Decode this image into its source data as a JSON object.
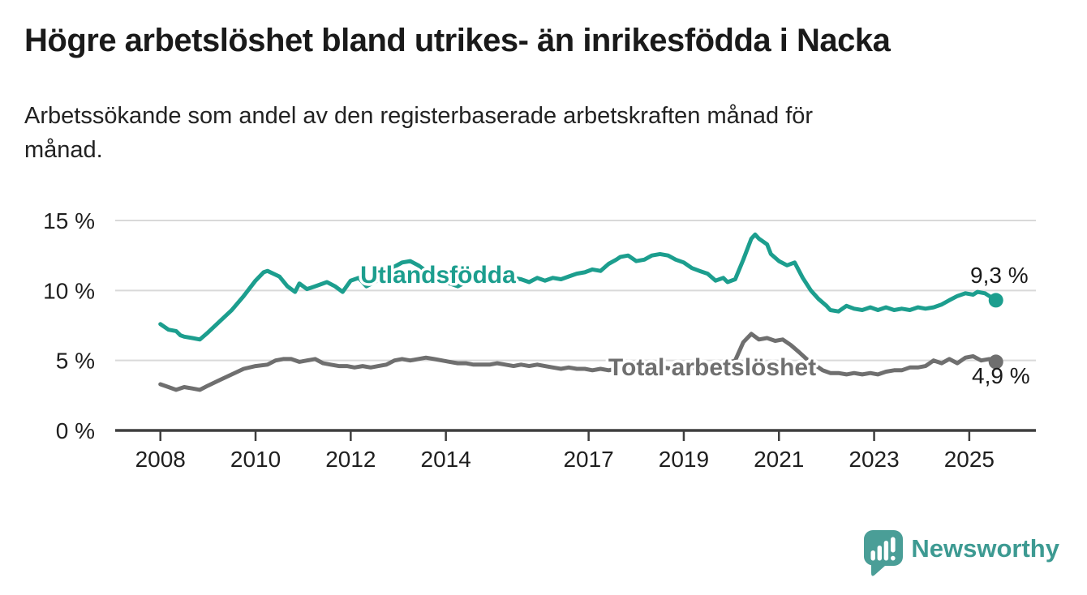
{
  "chart_data": {
    "type": "line",
    "title": "Högre arbetslöshet bland utrikes- än inrikesfödda i Nacka",
    "subtitle": "Arbetssökande som andel av den registerbaserade arbetskraften månad för månad.",
    "subtitle_lines": [
      "Arbetssökande som andel av den registerbaserade arbetskraften månad för",
      "månad."
    ],
    "unit": "%",
    "grid": "horizontal",
    "legend_position": "inline-labels",
    "x_axis": {
      "range": [
        2007.05,
        2026.4
      ],
      "tick_values": [
        2008,
        2010,
        2012,
        2014,
        2017,
        2019,
        2021,
        2023,
        2025
      ],
      "tick_labels": [
        "2008",
        "2010",
        "2012",
        "2014",
        "2017",
        "2019",
        "2021",
        "2023",
        "2025"
      ]
    },
    "y_axis": {
      "range": [
        0,
        15
      ],
      "tick_values": [
        0,
        5,
        10,
        15
      ],
      "tick_labels": [
        "0 %",
        "5 %",
        "10 %",
        "15 %"
      ]
    },
    "series": [
      {
        "name": "Utlandsfödda",
        "color": "#1c9e8e",
        "end_label": "9,3 %",
        "end_value": 9.3,
        "points": [
          [
            2008.0,
            7.6
          ],
          [
            2008.17,
            7.2
          ],
          [
            2008.33,
            7.1
          ],
          [
            2008.42,
            6.8
          ],
          [
            2008.5,
            6.7
          ],
          [
            2008.67,
            6.6
          ],
          [
            2008.83,
            6.5
          ],
          [
            2009.0,
            7.0
          ],
          [
            2009.25,
            7.8
          ],
          [
            2009.5,
            8.6
          ],
          [
            2009.75,
            9.6
          ],
          [
            2010.0,
            10.7
          ],
          [
            2010.17,
            11.3
          ],
          [
            2010.25,
            11.4
          ],
          [
            2010.5,
            11.0
          ],
          [
            2010.67,
            10.3
          ],
          [
            2010.83,
            9.9
          ],
          [
            2010.92,
            10.5
          ],
          [
            2011.08,
            10.1
          ],
          [
            2011.25,
            10.3
          ],
          [
            2011.5,
            10.6
          ],
          [
            2011.67,
            10.3
          ],
          [
            2011.83,
            9.9
          ],
          [
            2012.0,
            10.7
          ],
          [
            2012.17,
            10.9
          ],
          [
            2012.33,
            10.3
          ],
          [
            2012.5,
            10.6
          ],
          [
            2012.75,
            11.1
          ],
          [
            2012.92,
            11.7
          ],
          [
            2013.08,
            12.0
          ],
          [
            2013.25,
            12.1
          ],
          [
            2013.42,
            11.8
          ],
          [
            2013.58,
            11.4
          ],
          [
            2013.75,
            11.1
          ],
          [
            2013.92,
            10.9
          ],
          [
            2014.08,
            10.5
          ],
          [
            2014.25,
            10.3
          ],
          [
            2014.42,
            10.6
          ],
          [
            2014.58,
            10.8
          ],
          [
            2014.75,
            10.9
          ],
          [
            2014.92,
            11.0
          ],
          [
            2015.08,
            10.9
          ],
          [
            2015.25,
            10.8
          ],
          [
            2015.42,
            10.9
          ],
          [
            2015.58,
            10.8
          ],
          [
            2015.75,
            10.6
          ],
          [
            2015.92,
            10.9
          ],
          [
            2016.08,
            10.7
          ],
          [
            2016.25,
            10.9
          ],
          [
            2016.42,
            10.8
          ],
          [
            2016.58,
            11.0
          ],
          [
            2016.75,
            11.2
          ],
          [
            2016.92,
            11.3
          ],
          [
            2017.08,
            11.5
          ],
          [
            2017.25,
            11.4
          ],
          [
            2017.42,
            11.9
          ],
          [
            2017.58,
            12.2
          ],
          [
            2017.67,
            12.4
          ],
          [
            2017.83,
            12.5
          ],
          [
            2018.0,
            12.1
          ],
          [
            2018.17,
            12.2
          ],
          [
            2018.33,
            12.5
          ],
          [
            2018.5,
            12.6
          ],
          [
            2018.67,
            12.5
          ],
          [
            2018.83,
            12.2
          ],
          [
            2019.0,
            12.0
          ],
          [
            2019.17,
            11.6
          ],
          [
            2019.33,
            11.4
          ],
          [
            2019.5,
            11.2
          ],
          [
            2019.67,
            10.7
          ],
          [
            2019.83,
            10.9
          ],
          [
            2019.92,
            10.6
          ],
          [
            2020.08,
            10.8
          ],
          [
            2020.25,
            12.2
          ],
          [
            2020.42,
            13.7
          ],
          [
            2020.5,
            14.0
          ],
          [
            2020.58,
            13.7
          ],
          [
            2020.75,
            13.3
          ],
          [
            2020.83,
            12.6
          ],
          [
            2021.0,
            12.1
          ],
          [
            2021.17,
            11.8
          ],
          [
            2021.33,
            12.0
          ],
          [
            2021.5,
            10.9
          ],
          [
            2021.67,
            10.0
          ],
          [
            2021.83,
            9.4
          ],
          [
            2022.0,
            8.9
          ],
          [
            2022.08,
            8.6
          ],
          [
            2022.25,
            8.5
          ],
          [
            2022.42,
            8.9
          ],
          [
            2022.58,
            8.7
          ],
          [
            2022.75,
            8.6
          ],
          [
            2022.92,
            8.8
          ],
          [
            2023.08,
            8.6
          ],
          [
            2023.25,
            8.8
          ],
          [
            2023.42,
            8.6
          ],
          [
            2023.58,
            8.7
          ],
          [
            2023.75,
            8.6
          ],
          [
            2023.92,
            8.8
          ],
          [
            2024.08,
            8.7
          ],
          [
            2024.25,
            8.8
          ],
          [
            2024.42,
            9.0
          ],
          [
            2024.58,
            9.3
          ],
          [
            2024.75,
            9.6
          ],
          [
            2024.92,
            9.8
          ],
          [
            2025.08,
            9.7
          ],
          [
            2025.17,
            9.9
          ],
          [
            2025.33,
            9.8
          ],
          [
            2025.42,
            9.6
          ],
          [
            2025.56,
            9.3
          ]
        ]
      },
      {
        "name": "Total arbetslöshet",
        "color": "#6f6f6f",
        "end_label": "4,9 %",
        "end_value": 4.9,
        "points": [
          [
            2008.0,
            3.3
          ],
          [
            2008.17,
            3.1
          ],
          [
            2008.33,
            2.9
          ],
          [
            2008.5,
            3.1
          ],
          [
            2008.67,
            3.0
          ],
          [
            2008.83,
            2.9
          ],
          [
            2009.0,
            3.2
          ],
          [
            2009.25,
            3.6
          ],
          [
            2009.5,
            4.0
          ],
          [
            2009.75,
            4.4
          ],
          [
            2010.0,
            4.6
          ],
          [
            2010.25,
            4.7
          ],
          [
            2010.42,
            5.0
          ],
          [
            2010.58,
            5.1
          ],
          [
            2010.75,
            5.1
          ],
          [
            2010.92,
            4.9
          ],
          [
            2011.08,
            5.0
          ],
          [
            2011.25,
            5.1
          ],
          [
            2011.42,
            4.8
          ],
          [
            2011.58,
            4.7
          ],
          [
            2011.75,
            4.6
          ],
          [
            2011.92,
            4.6
          ],
          [
            2012.08,
            4.5
          ],
          [
            2012.25,
            4.6
          ],
          [
            2012.42,
            4.5
          ],
          [
            2012.58,
            4.6
          ],
          [
            2012.75,
            4.7
          ],
          [
            2012.92,
            5.0
          ],
          [
            2013.08,
            5.1
          ],
          [
            2013.25,
            5.0
          ],
          [
            2013.42,
            5.1
          ],
          [
            2013.58,
            5.2
          ],
          [
            2013.75,
            5.1
          ],
          [
            2013.92,
            5.0
          ],
          [
            2014.08,
            4.9
          ],
          [
            2014.25,
            4.8
          ],
          [
            2014.42,
            4.8
          ],
          [
            2014.58,
            4.7
          ],
          [
            2014.75,
            4.7
          ],
          [
            2014.92,
            4.7
          ],
          [
            2015.08,
            4.8
          ],
          [
            2015.25,
            4.7
          ],
          [
            2015.42,
            4.6
          ],
          [
            2015.58,
            4.7
          ],
          [
            2015.75,
            4.6
          ],
          [
            2015.92,
            4.7
          ],
          [
            2016.08,
            4.6
          ],
          [
            2016.25,
            4.5
          ],
          [
            2016.42,
            4.4
          ],
          [
            2016.58,
            4.5
          ],
          [
            2016.75,
            4.4
          ],
          [
            2016.92,
            4.4
          ],
          [
            2017.08,
            4.3
          ],
          [
            2017.25,
            4.4
          ],
          [
            2017.42,
            4.3
          ],
          [
            2017.58,
            4.4
          ],
          [
            2017.75,
            4.4
          ],
          [
            2017.92,
            4.5
          ],
          [
            2018.08,
            4.5
          ],
          [
            2018.25,
            4.6
          ],
          [
            2018.42,
            4.5
          ],
          [
            2018.58,
            4.5
          ],
          [
            2018.75,
            4.4
          ],
          [
            2018.92,
            4.5
          ],
          [
            2019.08,
            4.4
          ],
          [
            2019.25,
            4.5
          ],
          [
            2019.42,
            4.5
          ],
          [
            2019.58,
            4.6
          ],
          [
            2019.75,
            4.6
          ],
          [
            2019.92,
            4.8
          ],
          [
            2020.08,
            5.0
          ],
          [
            2020.25,
            6.3
          ],
          [
            2020.42,
            6.9
          ],
          [
            2020.58,
            6.5
          ],
          [
            2020.75,
            6.6
          ],
          [
            2020.92,
            6.4
          ],
          [
            2021.08,
            6.5
          ],
          [
            2021.25,
            6.1
          ],
          [
            2021.42,
            5.6
          ],
          [
            2021.58,
            5.1
          ],
          [
            2021.75,
            4.7
          ],
          [
            2021.92,
            4.3
          ],
          [
            2022.08,
            4.1
          ],
          [
            2022.25,
            4.1
          ],
          [
            2022.42,
            4.0
          ],
          [
            2022.58,
            4.1
          ],
          [
            2022.75,
            4.0
          ],
          [
            2022.92,
            4.1
          ],
          [
            2023.08,
            4.0
          ],
          [
            2023.25,
            4.2
          ],
          [
            2023.42,
            4.3
          ],
          [
            2023.58,
            4.3
          ],
          [
            2023.75,
            4.5
          ],
          [
            2023.92,
            4.5
          ],
          [
            2024.08,
            4.6
          ],
          [
            2024.25,
            5.0
          ],
          [
            2024.42,
            4.8
          ],
          [
            2024.58,
            5.1
          ],
          [
            2024.75,
            4.8
          ],
          [
            2024.92,
            5.2
          ],
          [
            2025.08,
            5.3
          ],
          [
            2025.25,
            5.0
          ],
          [
            2025.42,
            5.1
          ],
          [
            2025.56,
            4.9
          ]
        ]
      }
    ]
  },
  "colors": {
    "foreign_born_line": "#1c9e8e",
    "total_line": "#6f6f6f",
    "gridline": "#d9d9d9",
    "axis": "#3f3f3f",
    "text": "#1a1a1a",
    "brand_teal": "#3d9a92"
  },
  "footer": {
    "brand": "Newsworthy"
  }
}
